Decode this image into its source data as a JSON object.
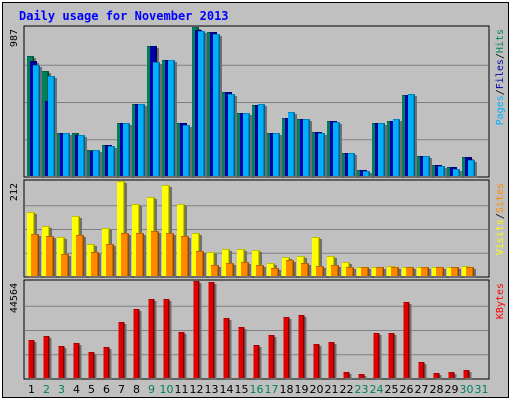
{
  "chart_data": {
    "type": "bar",
    "title": "Daily usage for November 2013",
    "categories": [
      "1",
      "2",
      "3",
      "4",
      "5",
      "6",
      "7",
      "8",
      "9",
      "10",
      "11",
      "12",
      "13",
      "14",
      "15",
      "16",
      "17",
      "18",
      "19",
      "20",
      "21",
      "22",
      "23",
      "24",
      "25",
      "26",
      "27",
      "28",
      "29",
      "30",
      "31"
    ],
    "weekend_days": [
      "2",
      "3",
      "9",
      "10",
      "16",
      "17",
      "23",
      "24",
      "30",
      "31"
    ],
    "panels": [
      {
        "id": "top",
        "max_label": "987",
        "ymax": 987,
        "legend": [
          {
            "text": "Pages",
            "color": "#00b0ff"
          },
          {
            "text": "/",
            "color": "#000000"
          },
          {
            "text": "Files",
            "color": "#0000aa"
          },
          {
            "text": "/",
            "color": "#000000"
          },
          {
            "text": "Hits",
            "color": "#00805c"
          }
        ],
        "series": [
          {
            "name": "Hits",
            "color": "#00805c",
            "values": [
              792,
              696,
              283,
              283,
              174,
              208,
              348,
              474,
              864,
              768,
              348,
              987,
              955,
              558,
              418,
              472,
              288,
              383,
              376,
              292,
              367,
              152,
              39,
              353,
              367,
              538,
              131,
              70,
              57,
              127,
              0
            ]
          },
          {
            "name": "Files",
            "color": "#0000aa",
            "values": [
              760,
              500,
              283,
              272,
              166,
              208,
              348,
              474,
              864,
              768,
              348,
              970,
              955,
              558,
              418,
              472,
              288,
              383,
              376,
              292,
              367,
              152,
              39,
              353,
              367,
              538,
              131,
              70,
              57,
              127,
              0
            ]
          },
          {
            "name": "Pages",
            "color": "#00b0ff",
            "values": [
              736,
              664,
              283,
              269,
              170,
              202,
              348,
              474,
              752,
              768,
              338,
              962,
              938,
              542,
              419,
              480,
              286,
              426,
              376,
              286,
              360,
              152,
              32,
              353,
              378,
              546,
              132,
              67,
              48,
              103,
              0
            ]
          }
        ]
      },
      {
        "id": "mid",
        "max_label": "212",
        "ymax": 212,
        "legend": [
          {
            "text": "Visits",
            "color": "#ffff00"
          },
          {
            "text": "/",
            "color": "#000000"
          },
          {
            "text": "Sites",
            "color": "#ff8800"
          }
        ],
        "series": [
          {
            "name": "Visits",
            "color": "#ffff00",
            "values": [
              143,
              111,
              86,
              135,
              72,
              108,
              212,
              160,
              177,
              204,
              161,
              97,
              54,
              60,
              60,
              57,
              28,
              43,
              44,
              86,
              45,
              31,
              20,
              21,
              22,
              21,
              19,
              19,
              19,
              23,
              0
            ]
          },
          {
            "name": "Sites",
            "color": "#ff8800",
            "values": [
              94,
              90,
              49,
              91,
              54,
              72,
              95,
              95,
              100,
              95,
              90,
              56,
              24,
              29,
              32,
              25,
              17,
              36,
              28,
              22,
              24,
              20,
              20,
              21,
              21,
              20,
              19,
              19,
              20,
              21,
              0
            ]
          }
        ]
      },
      {
        "id": "bot",
        "max_label": "44564",
        "ymax": 44564,
        "legend": [
          {
            "text": "KBytes",
            "color": "#ff0000"
          }
        ],
        "series": [
          {
            "name": "KBytes",
            "color": "#e00000",
            "values": [
              17500,
              19500,
              14900,
              15900,
              12000,
              14100,
              25700,
              31900,
              36300,
              36300,
              21100,
              44564,
              44100,
              27500,
              23400,
              15000,
              19900,
              28100,
              28900,
              15600,
              16400,
              2900,
              2000,
              20600,
              20600,
              35000,
              7300,
              2400,
              2900,
              3700,
              0
            ]
          }
        ]
      }
    ]
  }
}
